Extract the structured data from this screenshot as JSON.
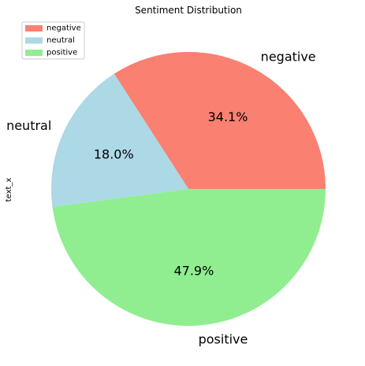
{
  "chart_data": {
    "type": "pie",
    "title": "Sentiment Distribution",
    "ylabel": "text_x",
    "legend_position": "top-left",
    "start_angle_deg": 0,
    "direction": "counterclockwise",
    "slices": [
      {
        "label": "negative",
        "value": 34.1,
        "pct_label": "34.1%",
        "color": "#FA8072"
      },
      {
        "label": "neutral",
        "value": 18.0,
        "pct_label": "18.0%",
        "color": "#ADD8E6"
      },
      {
        "label": "positive",
        "value": 47.9,
        "pct_label": "47.9%",
        "color": "#90EE90"
      }
    ]
  }
}
